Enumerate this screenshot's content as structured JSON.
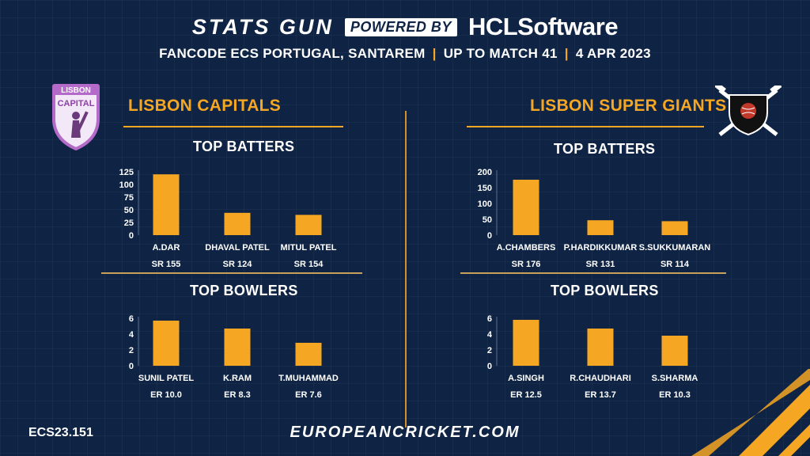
{
  "header": {
    "brand": "STATS GUN",
    "powered_by": "POWERED BY",
    "sponsor": "HCLSoftware",
    "event": "FANCODE ECS PORTUGAL, SANTAREM",
    "range": "UP TO MATCH  41",
    "date": "4 APR 2023",
    "separator": "|"
  },
  "teams": {
    "left": {
      "name": "LISBON CAPITALS",
      "logo_text_top": "LISBON",
      "logo_text_bottom": "CAPITAL",
      "batters_title": "TOP BATTERS",
      "bowlers_title": "TOP BOWLERS"
    },
    "right": {
      "name": "LISBON SUPER GIANTS",
      "batters_title": "TOP BATTERS",
      "bowlers_title": "TOP BOWLERS"
    }
  },
  "chart_data": [
    {
      "id": "left-batters",
      "type": "bar",
      "team": "LISBON CAPITALS",
      "title": "TOP BATTERS",
      "categories": [
        "A.DAR",
        "DHAVAL PATEL",
        "MITUL PATEL"
      ],
      "values": [
        120,
        44,
        40
      ],
      "sub_labels": [
        "SR 155",
        "SR 124",
        "SR 154"
      ],
      "yticks": [
        0,
        25,
        50,
        75,
        100,
        125
      ],
      "ylim": [
        0,
        125
      ],
      "grid": false,
      "color": "#f5a623"
    },
    {
      "id": "left-bowlers",
      "type": "bar",
      "team": "LISBON CAPITALS",
      "title": "TOP BOWLERS",
      "categories": [
        "SUNIL PATEL",
        "K.RAM",
        "T.MUHAMMAD"
      ],
      "values": [
        5.7,
        4.7,
        2.9
      ],
      "sub_labels": [
        "ER 10.0",
        "ER 8.3",
        "ER 7.6"
      ],
      "yticks": [
        0,
        2,
        4,
        6
      ],
      "ylim": [
        0,
        6
      ],
      "grid": false,
      "color": "#f5a623"
    },
    {
      "id": "right-batters",
      "type": "bar",
      "team": "LISBON SUPER GIANTS",
      "title": "TOP BATTERS",
      "categories": [
        "A.CHAMBERS",
        "P.HARDIKKUMAR",
        "S.SUKKUMARAN"
      ],
      "values": [
        175,
        47,
        44
      ],
      "sub_labels": [
        "SR 176",
        "SR 131",
        "SR 114"
      ],
      "yticks": [
        0,
        50,
        100,
        150,
        200
      ],
      "ylim": [
        0,
        200
      ],
      "grid": false,
      "color": "#f5a623"
    },
    {
      "id": "right-bowlers",
      "type": "bar",
      "team": "LISBON SUPER GIANTS",
      "title": "TOP BOWLERS",
      "categories": [
        "A.SINGH",
        "R.CHAUDHARI",
        "S.SHARMA"
      ],
      "values": [
        5.8,
        4.7,
        3.8
      ],
      "sub_labels": [
        "ER 12.5",
        "ER 13.7",
        "ER 10.3"
      ],
      "yticks": [
        0,
        2,
        4,
        6
      ],
      "ylim": [
        0,
        6
      ],
      "grid": false,
      "color": "#f5a623"
    }
  ],
  "footer": {
    "code": "ECS23.151",
    "site": "EUROPEANCRICKET.COM"
  },
  "colors": {
    "background": "#0f2444",
    "accent": "#f5a623",
    "text": "#ffffff"
  }
}
